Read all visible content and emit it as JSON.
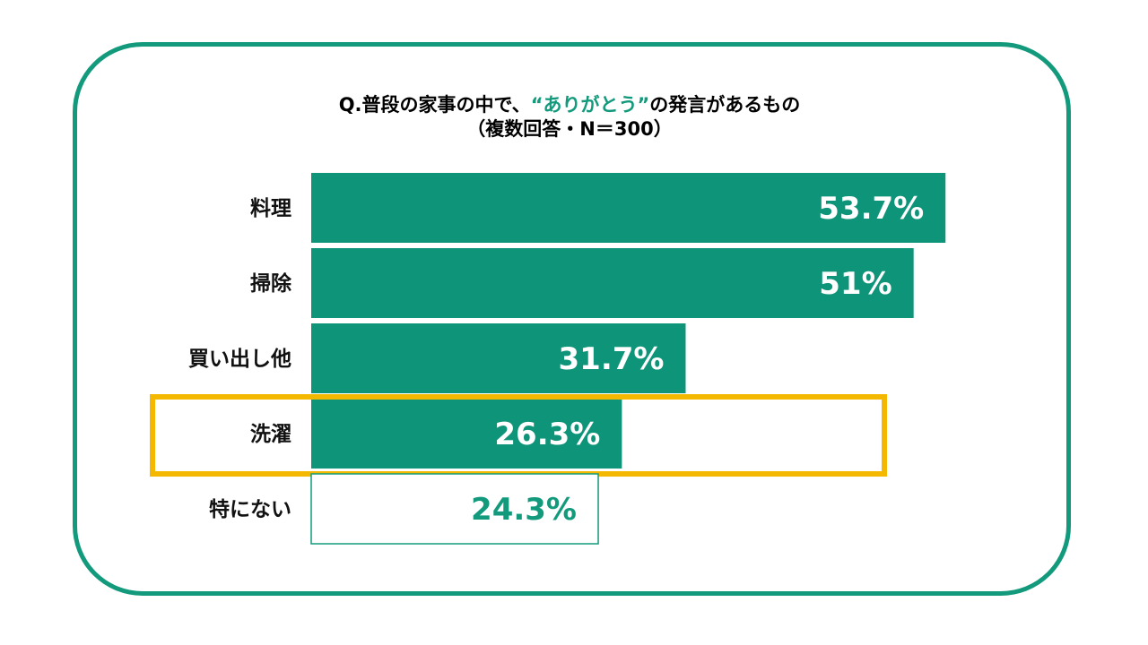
{
  "title": {
    "line1_prefix": "Q.普段の家事の中で、",
    "line1_accent": "“ありがとう”",
    "line1_suffix": "の発言があるもの",
    "line2": "（複数回答・N＝300）"
  },
  "colors": {
    "accent": "#139a7c",
    "bar_fill": "#0e9479",
    "highlight_border": "#f5b800",
    "outline_bar_stroke": "#139a7c"
  },
  "chart_data": {
    "type": "bar",
    "orientation": "horizontal",
    "categories": [
      "料理",
      "掃除",
      "買い出し他",
      "洗濯",
      "特にない"
    ],
    "values": [
      53.7,
      51,
      31.7,
      26.3,
      24.3
    ],
    "value_labels": [
      "53.7%",
      "51%",
      "31.7%",
      "26.3%",
      "24.3%"
    ],
    "styles": [
      "filled",
      "filled",
      "filled",
      "filled",
      "outline"
    ],
    "highlighted_category": "洗濯",
    "xlim": [
      0,
      100
    ]
  }
}
